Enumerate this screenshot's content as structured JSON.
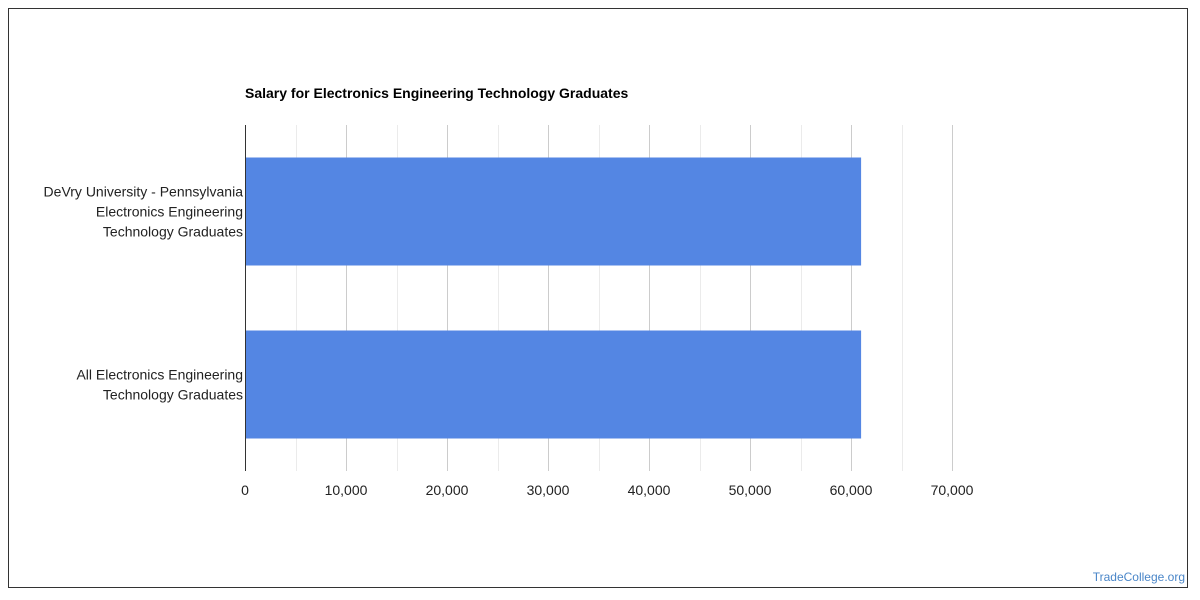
{
  "chart_data": {
    "type": "bar",
    "orientation": "horizontal",
    "title": "Salary for Electronics Engineering Technology Graduates",
    "categories": [
      [
        "DeVry University - Pennsylvania",
        "Electronics Engineering",
        "Technology Graduates"
      ],
      [
        "All Electronics Engineering",
        "Technology Graduates"
      ]
    ],
    "values": [
      61000,
      61000
    ],
    "xlim": [
      0,
      70000
    ],
    "xticks": [
      "0",
      "10,000",
      "20,000",
      "30,000",
      "40,000",
      "50,000",
      "60,000",
      "70,000"
    ],
    "xlabel": "",
    "ylabel": "",
    "grid": true,
    "colors": {
      "bar": "#5486e3",
      "grid_major": "#cccccc",
      "grid_minor": "#ebebeb",
      "axis": "#333333",
      "label": "#222222"
    }
  },
  "footer": {
    "credit": "TradeCollege.org"
  }
}
